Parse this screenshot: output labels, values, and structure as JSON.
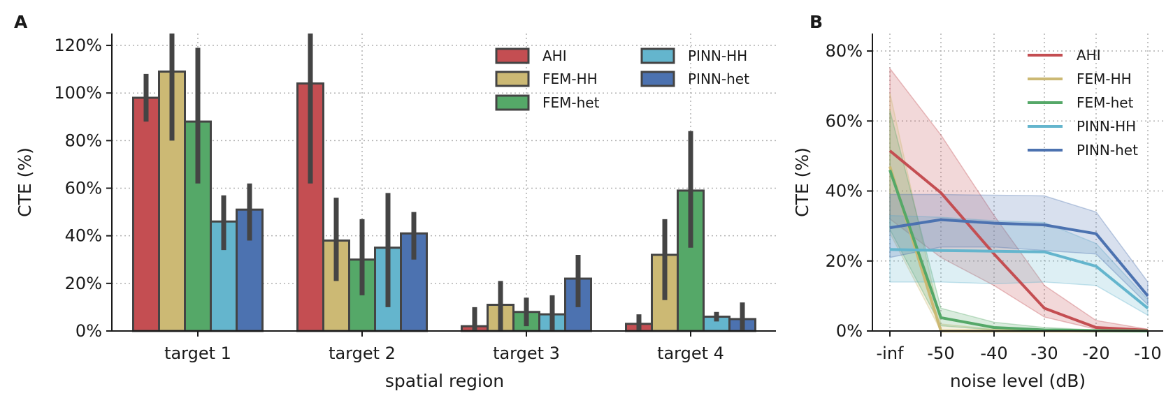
{
  "figure": {
    "panels": [
      "A",
      "B"
    ]
  },
  "colors": {
    "AHI": "#c44e52",
    "FEM-HH": "#ccb974",
    "FEM-het": "#55a868",
    "PINN-HH": "#64b5cd",
    "PINN-het": "#4c72b0",
    "errorbar": "#444444",
    "edge": "#444444"
  },
  "chart_data": [
    {
      "panel": "A",
      "type": "bar",
      "title": "",
      "xlabel": "spatial region",
      "ylabel": "CTE (%)",
      "ylim": [
        0,
        125
      ],
      "yticks": [
        0,
        20,
        40,
        60,
        80,
        100,
        120
      ],
      "ytick_labels": [
        "0%",
        "20%",
        "40%",
        "60%",
        "80%",
        "100%",
        "120%"
      ],
      "categories": [
        "target 1",
        "target 2",
        "target 3",
        "target 4"
      ],
      "grid": true,
      "legend": {
        "placement": "top-right",
        "columns": 2
      },
      "series": [
        {
          "name": "AHI",
          "values": [
            98,
            104,
            2,
            3
          ],
          "err_low": [
            88,
            62,
            0,
            0
          ],
          "err_high": [
            108,
            125,
            10,
            7
          ]
        },
        {
          "name": "FEM-HH",
          "values": [
            109,
            38,
            11,
            32
          ],
          "err_low": [
            80,
            21,
            0,
            13
          ],
          "err_high": [
            125,
            56,
            21,
            47
          ]
        },
        {
          "name": "FEM-het",
          "values": [
            88,
            30,
            8,
            59
          ],
          "err_low": [
            62,
            15,
            2,
            35
          ],
          "err_high": [
            119,
            47,
            14,
            84
          ]
        },
        {
          "name": "PINN-HH",
          "values": [
            46,
            35,
            7,
            6
          ],
          "err_low": [
            34,
            10,
            0,
            4
          ],
          "err_high": [
            57,
            58,
            15,
            8
          ]
        },
        {
          "name": "PINN-het",
          "values": [
            51,
            41,
            22,
            5
          ],
          "err_low": [
            38,
            30,
            10,
            0
          ],
          "err_high": [
            62,
            50,
            32,
            12
          ]
        }
      ]
    },
    {
      "panel": "B",
      "type": "line",
      "title": "",
      "xlabel": "noise level (dB)",
      "ylabel": "CTE (%)",
      "x": [
        "-inf",
        "-50",
        "-40",
        "-30",
        "-20",
        "-10"
      ],
      "ylim": [
        0,
        85
      ],
      "yticks": [
        0,
        20,
        40,
        60,
        80
      ],
      "ytick_labels": [
        "0%",
        "20%",
        "40%",
        "60%",
        "80%"
      ],
      "grid": true,
      "legend": {
        "placement": "top-right",
        "columns": 1
      },
      "series": [
        {
          "name": "AHI",
          "values": [
            51.5,
            39.5,
            22,
            6.5,
            1,
            0.2
          ],
          "band_low": [
            32,
            21,
            13,
            4,
            0.5,
            0
          ],
          "band_high": [
            75,
            56,
            33,
            13,
            3,
            0.5
          ]
        },
        {
          "name": "FEM-HH",
          "values": [
            47,
            0,
            0,
            0,
            0,
            0
          ],
          "band_low": [
            28,
            0,
            0,
            0,
            0,
            0
          ],
          "band_high": [
            68,
            2,
            0.5,
            0,
            0,
            0
          ]
        },
        {
          "name": "FEM-het",
          "values": [
            46,
            3.8,
            1,
            0.3,
            0.1,
            0
          ],
          "band_low": [
            29,
            1.5,
            0.3,
            0,
            0,
            0
          ],
          "band_high": [
            63,
            6.5,
            2.5,
            1,
            0.3,
            0
          ]
        },
        {
          "name": "PINN-HH",
          "values": [
            23.3,
            23,
            22.8,
            22.6,
            18.5,
            6.5
          ],
          "band_low": [
            14,
            14,
            13.5,
            14,
            13,
            4.5
          ],
          "band_high": [
            33,
            32.5,
            31.5,
            31,
            25,
            9
          ]
        },
        {
          "name": "PINN-het",
          "values": [
            29.5,
            31.8,
            30.8,
            30.3,
            27.8,
            10
          ],
          "band_low": [
            21,
            24,
            24,
            23,
            22,
            7.5
          ],
          "band_high": [
            39,
            39,
            38.8,
            38.6,
            34,
            14
          ]
        }
      ]
    }
  ]
}
